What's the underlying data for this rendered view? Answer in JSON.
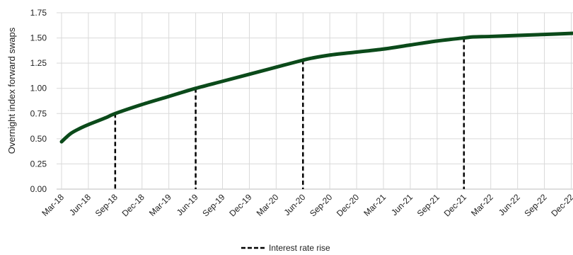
{
  "chart_data": {
    "type": "line",
    "title": "",
    "xlabel": "",
    "ylabel": "Overnight index forward swaps",
    "ylim": [
      0,
      1.75
    ],
    "yticks": [
      "0.00",
      "0.25",
      "0.50",
      "0.75",
      "1.00",
      "1.25",
      "1.50",
      "1.75"
    ],
    "xticks": [
      "Mar-18",
      "Jun-18",
      "Sep-18",
      "Dec-18",
      "Mar-19",
      "Jun-19",
      "Sep-19",
      "Dec-19",
      "Mar-20",
      "Jun-20",
      "Sep-20",
      "Dec-20",
      "Mar-21",
      "Jun-21",
      "Sep-21",
      "Dec-21",
      "Mar-22",
      "Jun-22",
      "Sep-22",
      "Dec-22"
    ],
    "grid": true,
    "legend_position": "bottom-center",
    "series": [
      {
        "name": "",
        "color": "#0b4a1a",
        "x": [
          "Mar-18",
          "Apr-18",
          "May-18",
          "Jun-18",
          "Aug-18",
          "Sep-18",
          "Dec-18",
          "Mar-19",
          "Jun-19",
          "Sep-19",
          "Dec-19",
          "Mar-20",
          "Jun-20",
          "Jul-20",
          "Sep-20",
          "Dec-20",
          "Mar-21",
          "Jun-21",
          "Sep-21",
          "Dec-21",
          "Jan-22",
          "Mar-22",
          "Jun-22",
          "Sep-22",
          "Dec-22",
          "Feb-23"
        ],
        "values": [
          0.47,
          0.55,
          0.6,
          0.64,
          0.71,
          0.75,
          0.84,
          0.92,
          1.0,
          1.07,
          1.14,
          1.21,
          1.28,
          1.3,
          1.33,
          1.36,
          1.39,
          1.43,
          1.47,
          1.5,
          1.51,
          1.515,
          1.525,
          1.535,
          1.545,
          1.555
        ]
      }
    ],
    "rate_rise_markers": [
      "Sep-18",
      "Jun-19",
      "Jun-20",
      "Dec-21"
    ],
    "legend": [
      {
        "label": "Interest rate rise",
        "style": "dashed",
        "color": "#000000"
      }
    ]
  }
}
